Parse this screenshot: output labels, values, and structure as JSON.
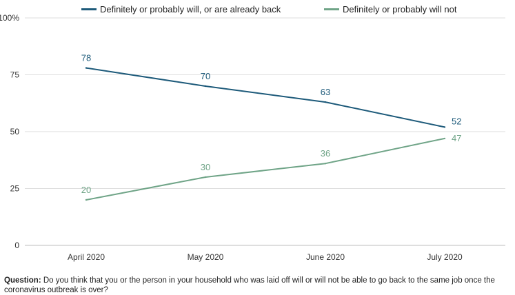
{
  "chart_data": {
    "type": "line",
    "categories": [
      "April 2020",
      "May 2020",
      "June 2020",
      "July 2020"
    ],
    "series": [
      {
        "name": "Definitely or probably will, or are already back",
        "values": [
          78,
          70,
          63,
          52
        ],
        "color": "#1d5a7a"
      },
      {
        "name": "Definitely or probably will not",
        "values": [
          20,
          30,
          36,
          47
        ],
        "color": "#6fa487"
      }
    ],
    "y_ticks": [
      "0",
      "25",
      "50",
      "75",
      "100%"
    ],
    "ylim": [
      0,
      100
    ],
    "grid": true,
    "legend_position": "top"
  },
  "footnote": {
    "label": "Question:",
    "text": " Do you think that you or the person in your household who was laid off will or will not be able to go back to the same job once the coronavirus outbreak is over?"
  },
  "colors": {
    "grid": "#dedede",
    "axis_text": "#333333"
  }
}
